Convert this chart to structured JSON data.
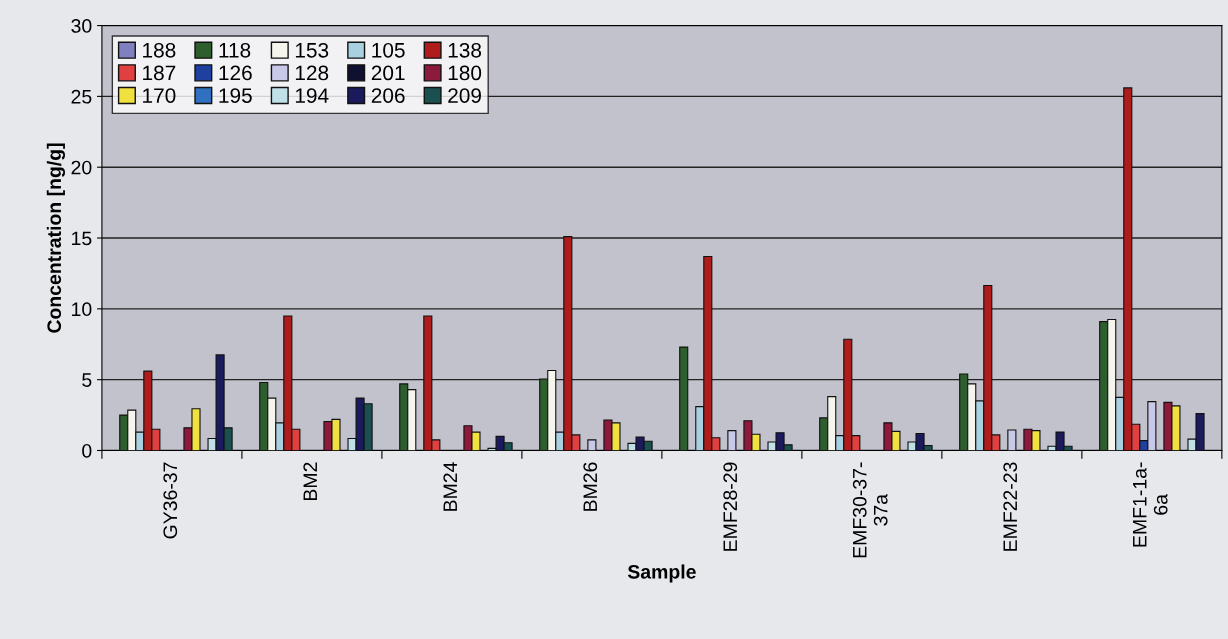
{
  "chart_data": {
    "type": "bar",
    "xlabel": "Sample",
    "ylabel": "Concentration [ng/g]",
    "categories": [
      "GY36-37",
      "BM2",
      "BM24",
      "BM26",
      "EMF28-29",
      "EMF30-37-\n37a",
      "EMF22-23",
      "EMF1-1a-\n6a"
    ],
    "ylim": [
      0,
      30
    ],
    "yticks": [
      0,
      5,
      10,
      15,
      20,
      25,
      30
    ],
    "grid": "y",
    "legend": "top left",
    "series": [
      {
        "name": "188",
        "color": "#8080c0",
        "values": [
          null,
          null,
          null,
          null,
          null,
          null,
          null,
          null
        ]
      },
      {
        "name": "118",
        "color": "#2e5e2e",
        "values": [
          2.5,
          4.8,
          4.7,
          5.05,
          7.3,
          2.3,
          5.4,
          9.1
        ]
      },
      {
        "name": "153",
        "color": "#f5f5ee",
        "values": [
          2.85,
          3.7,
          4.3,
          5.65,
          null,
          3.8,
          4.7,
          9.25
        ]
      },
      {
        "name": "105",
        "color": "#a8d0e0",
        "values": [
          1.3,
          1.95,
          null,
          1.3,
          3.1,
          1.05,
          3.5,
          3.75
        ]
      },
      {
        "name": "138",
        "color": "#b01c1c",
        "values": [
          5.6,
          9.5,
          9.5,
          15.1,
          13.7,
          7.85,
          11.65,
          25.6
        ]
      },
      {
        "name": "187",
        "color": "#e04040",
        "values": [
          1.5,
          1.5,
          0.75,
          1.1,
          0.9,
          1.05,
          1.1,
          1.85
        ]
      },
      {
        "name": "126",
        "color": "#2040a0",
        "values": [
          null,
          null,
          null,
          null,
          null,
          null,
          null,
          0.7
        ]
      },
      {
        "name": "128",
        "color": "#c8c8e8",
        "values": [
          null,
          null,
          null,
          0.75,
          1.4,
          null,
          1.45,
          3.45
        ]
      },
      {
        "name": "201",
        "color": "#101030",
        "values": [
          null,
          null,
          null,
          null,
          null,
          null,
          null,
          null
        ]
      },
      {
        "name": "180",
        "color": "#8c1a3c",
        "values": [
          1.6,
          2.05,
          1.75,
          2.15,
          2.1,
          1.95,
          1.5,
          3.4
        ]
      },
      {
        "name": "170",
        "color": "#f0e040",
        "values": [
          2.95,
          2.2,
          1.3,
          1.95,
          1.15,
          1.35,
          1.4,
          3.15
        ]
      },
      {
        "name": "195",
        "color": "#3070c0",
        "values": [
          null,
          null,
          null,
          null,
          null,
          null,
          null,
          null
        ]
      },
      {
        "name": "194",
        "color": "#c0e0e8",
        "values": [
          0.85,
          0.85,
          0.15,
          0.5,
          0.6,
          0.6,
          0.3,
          0.8
        ]
      },
      {
        "name": "206",
        "color": "#1a1a5c",
        "values": [
          6.75,
          3.7,
          1.0,
          0.95,
          1.25,
          1.2,
          1.3,
          2.6
        ]
      },
      {
        "name": "209",
        "color": "#1a5050",
        "values": [
          1.6,
          3.3,
          0.55,
          0.65,
          0.4,
          0.35,
          0.3,
          null
        ]
      }
    ]
  }
}
